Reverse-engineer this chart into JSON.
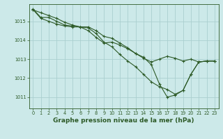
{
  "background_color": "#cce9e9",
  "line_color": "#2d5a27",
  "grid_color": "#aacfcf",
  "xlabel": "Graphe pression niveau de la mer (hPa)",
  "xlabel_fontsize": 6.5,
  "xlim": [
    -0.5,
    23.5
  ],
  "ylim": [
    1010.4,
    1015.9
  ],
  "yticks": [
    1011,
    1012,
    1013,
    1014,
    1015
  ],
  "xticks": [
    0,
    1,
    2,
    3,
    4,
    5,
    6,
    7,
    8,
    9,
    10,
    11,
    12,
    13,
    14,
    15,
    16,
    17,
    18,
    19,
    20,
    21,
    22,
    23
  ],
  "series": [
    [
      1015.65,
      1015.2,
      1015.2,
      1015.0,
      1014.8,
      1014.75,
      1014.7,
      1014.7,
      1014.5,
      1014.2,
      1014.1,
      1013.85,
      1013.6,
      1013.3,
      1013.1,
      1012.7,
      1011.7,
      1011.0,
      1011.1,
      1011.35,
      1012.2,
      1012.85,
      1012.9,
      1012.9
    ],
    [
      1015.62,
      1015.15,
      1015.0,
      1014.85,
      1014.75,
      1014.7,
      1014.7,
      1014.65,
      1014.35,
      1013.9,
      1013.65,
      1013.25,
      1012.9,
      1012.6,
      1012.2,
      1011.8,
      1011.55,
      1011.4,
      1011.15,
      1011.35,
      1012.2,
      1012.85,
      1012.9,
      1012.9
    ],
    [
      1015.6,
      1015.45,
      1015.3,
      1015.15,
      1014.95,
      1014.8,
      1014.7,
      1014.5,
      1014.15,
      1013.85,
      1013.9,
      1013.75,
      1013.55,
      1013.3,
      1013.05,
      1012.85,
      1013.0,
      1013.15,
      1013.05,
      1012.9,
      1013.0,
      1012.85,
      1012.9,
      1012.9
    ]
  ]
}
